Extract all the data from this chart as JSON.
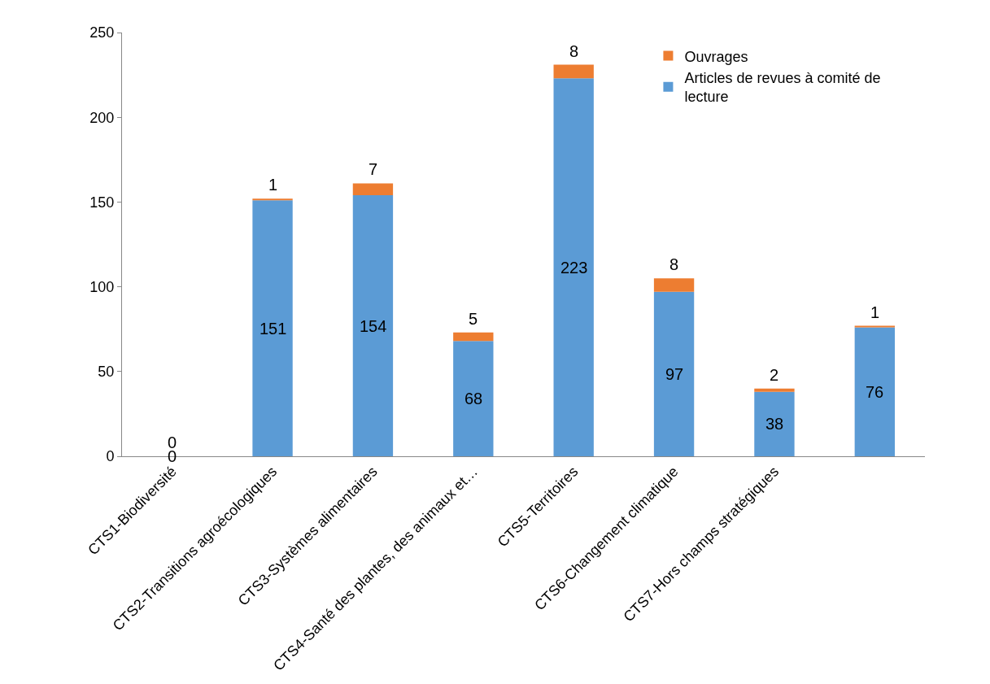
{
  "chart_data": {
    "type": "bar",
    "stacked": true,
    "categories": [
      "CTS1-Biodiversité",
      "CTS2-Transitions agroécologiques",
      "CTS3-Systèmes alimentaires",
      "CTS4-Santé des plantes, des animaux et…",
      "CTS5-Territoires",
      "CTS6-Changement climatique",
      "CTS7-Hors champs stratégiques",
      null
    ],
    "series": [
      {
        "name": "Articles de revues à comité de lecture",
        "color": "#5b9bd5",
        "values": [
          0,
          151,
          154,
          68,
          223,
          97,
          38,
          76
        ]
      },
      {
        "name": "Ouvrages",
        "color": "#ed7d31",
        "values": [
          0,
          1,
          7,
          5,
          8,
          8,
          2,
          1
        ]
      }
    ],
    "ylim": [
      0,
      250
    ],
    "yticks": [
      0,
      50,
      100,
      150,
      200,
      250
    ],
    "legend": "top right",
    "data_labels": true
  }
}
